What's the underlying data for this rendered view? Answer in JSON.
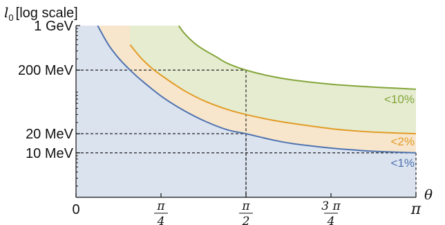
{
  "chart_data": {
    "type": "area",
    "ylabel_var": "l",
    "ylabel_sub": "0",
    "ylabel_suffix": "[log scale]",
    "xlabel": "θ",
    "yscale": "log",
    "ylim": [
      2.0,
      1000
    ],
    "xlim": [
      0,
      3.14159
    ],
    "y_ticks": [
      {
        "value": 1000,
        "label": "1 GeV"
      },
      {
        "value": 200,
        "label": "200 MeV"
      },
      {
        "value": 20,
        "label": "20 MeV"
      },
      {
        "value": 10,
        "label": "10 MeV"
      }
    ],
    "x_ticks": [
      {
        "value": 0,
        "kind": "plain",
        "text": "0"
      },
      {
        "value": 0.7854,
        "kind": "frac",
        "num": "π",
        "den": "4"
      },
      {
        "value": 1.5708,
        "kind": "frac",
        "num": "π",
        "den": "2"
      },
      {
        "value": 2.3562,
        "kind": "frac",
        "num": "3 π",
        "den": "4"
      },
      {
        "value": 3.14159,
        "kind": "plain",
        "text": "π"
      }
    ],
    "series": [
      {
        "name": "<1%",
        "color": "#4f73b0",
        "fill": "#dbe3ef",
        "x": [
          0.2,
          0.3,
          0.4,
          0.5,
          0.6,
          0.8,
          1.0,
          1.2,
          1.4,
          1.5708,
          1.8,
          2.0,
          2.3562,
          2.6,
          2.8,
          3.14159
        ],
        "y": [
          1000,
          500,
          300,
          200,
          140,
          75,
          46,
          31,
          23,
          20,
          16.2,
          14.0,
          11.9,
          11.0,
          10.5,
          10.0
        ]
      },
      {
        "name": "<2%",
        "color": "#e39b26",
        "fill": "#f7e6cc",
        "x": [
          0.5,
          0.6,
          0.7,
          0.8,
          1.0,
          1.2,
          1.4,
          1.5708,
          1.8,
          2.0,
          2.3562,
          2.6,
          2.8,
          3.14159
        ],
        "y": [
          500,
          310,
          215,
          160,
          95,
          64,
          48,
          40,
          33,
          29,
          24,
          22,
          21,
          20
        ]
      },
      {
        "name": "<10%",
        "color": "#84a53a",
        "fill": "#e5ecd0",
        "x": [
          0.95,
          1.0,
          1.1,
          1.2,
          1.3,
          1.4,
          1.5708,
          1.8,
          2.0,
          2.3562,
          2.6,
          2.8,
          3.14159
        ],
        "y": [
          1000,
          760,
          520,
          400,
          320,
          255,
          200,
          160,
          140,
          120,
          112,
          107,
          100
        ]
      }
    ],
    "reference_lines": [
      {
        "x": 1.5708,
        "y": 200
      },
      {
        "x": 1.5708,
        "y": 20
      },
      {
        "x": 3.14159,
        "y": 10
      }
    ],
    "grid": false,
    "legend": "curve labels at right end"
  }
}
